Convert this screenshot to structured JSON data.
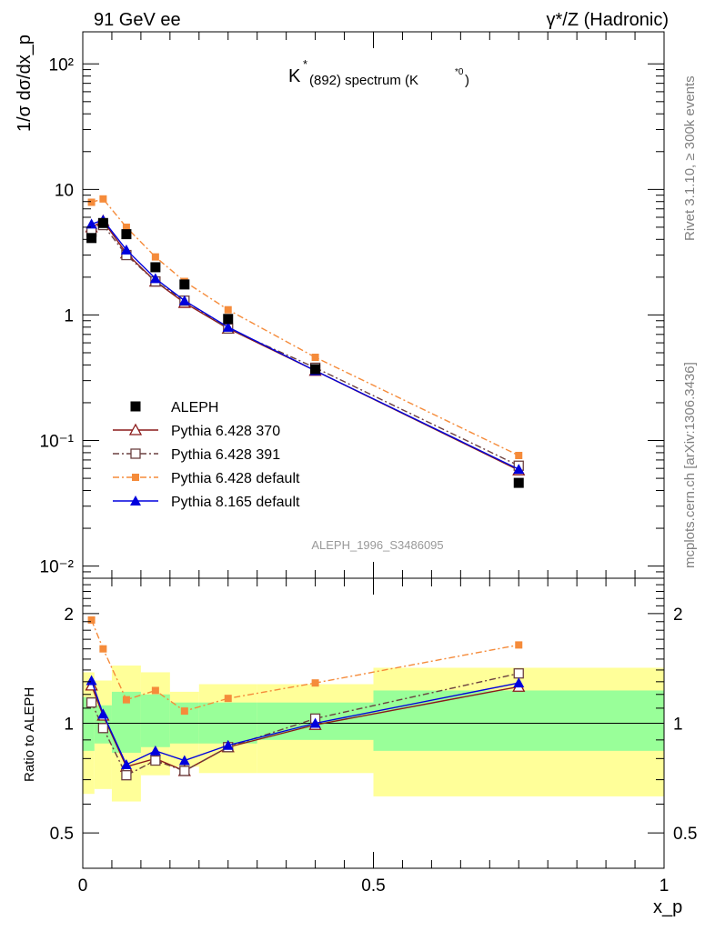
{
  "header": {
    "left": "91 GeV ee",
    "right": "γ*/Z (Hadronic)"
  },
  "side_labels": {
    "rivet": "Rivet 3.1.10, ≥ 300k events",
    "mcplots": "mcplots.cern.ch [arXiv:1306.3436]"
  },
  "analysis_label": "ALEPH_1996_S3486095",
  "title": {
    "main": "K",
    "sup": "*",
    "sub": "(892) spectrum (K",
    "sub_sup": "*0",
    "sub_close": ")"
  },
  "chart_data": [
    {
      "type": "scatter",
      "panel": "main",
      "yscale": "log",
      "ylabel": "1/σ dσ/dx_p",
      "xlim": [
        0,
        1
      ],
      "ylim": [
        0.008,
        180
      ],
      "y_tick_labels": [
        "10⁻²",
        "10⁻¹",
        "1",
        "10",
        "10²"
      ],
      "y_tick_values": [
        0.01,
        0.1,
        1,
        10,
        100
      ],
      "legend_position": "middle-left",
      "x": [
        0.015,
        0.035,
        0.075,
        0.125,
        0.175,
        0.25,
        0.4,
        0.75
      ],
      "series": [
        {
          "name": "ALEPH",
          "color": "#000000",
          "marker": "square-filled",
          "line": "none",
          "values": [
            4.1,
            5.4,
            4.4,
            2.4,
            1.75,
            0.93,
            0.37,
            0.046
          ]
        },
        {
          "name": "Pythia 6.428 370",
          "color": "#8b1a1a",
          "marker": "triangle-open",
          "line": "solid",
          "values": [
            5.0,
            5.6,
            3.1,
            1.85,
            1.25,
            0.78,
            0.36,
            0.058
          ]
        },
        {
          "name": "Pythia 6.428 391",
          "color": "#6b4040",
          "marker": "square-open",
          "line": "dashdot",
          "values": [
            4.6,
            5.2,
            3.0,
            1.85,
            1.3,
            0.78,
            0.38,
            0.063
          ]
        },
        {
          "name": "Pythia 6.428 default",
          "color": "#f58b3a",
          "marker": "square-small-filled",
          "line": "dashdot",
          "values": [
            7.9,
            8.4,
            5.0,
            2.9,
            1.85,
            1.1,
            0.46,
            0.076
          ]
        },
        {
          "name": "Pythia 8.165 default",
          "color": "#0000dd",
          "marker": "triangle-filled",
          "line": "solid",
          "values": [
            5.3,
            5.7,
            3.3,
            1.95,
            1.3,
            0.8,
            0.36,
            0.059
          ]
        }
      ]
    },
    {
      "type": "scatter",
      "panel": "ratio",
      "yscale": "log",
      "ylabel": "Ratio to ALEPH",
      "xlabel": "x_p",
      "xlim": [
        0,
        1
      ],
      "ylim": [
        0.4,
        2.5
      ],
      "x_tick_labels": [
        "0",
        "0.5",
        "1"
      ],
      "x_tick_values": [
        0,
        0.5,
        1
      ],
      "y_tick_labels": [
        "0.5",
        "1",
        "2"
      ],
      "y_tick_values": [
        0.5,
        1,
        2
      ],
      "reference_line": 1,
      "bands": {
        "bins": [
          [
            0,
            0.02
          ],
          [
            0.02,
            0.05
          ],
          [
            0.05,
            0.1
          ],
          [
            0.1,
            0.15
          ],
          [
            0.15,
            0.2
          ],
          [
            0.2,
            0.3
          ],
          [
            0.3,
            0.5
          ],
          [
            0.5,
            1.0
          ]
        ],
        "inner": {
          "name": "stat",
          "color": "#99ff99",
          "lo": [
            0.84,
            0.88,
            0.83,
            0.86,
            0.88,
            0.88,
            0.9,
            0.84
          ],
          "hi": [
            1.18,
            1.12,
            1.22,
            1.2,
            1.14,
            1.14,
            1.14,
            1.23
          ]
        },
        "outer": {
          "name": "total",
          "color": "#ffff99",
          "lo": [
            0.64,
            0.66,
            0.61,
            0.72,
            0.76,
            0.73,
            0.73,
            0.63
          ],
          "hi": [
            1.38,
            1.31,
            1.44,
            1.38,
            1.22,
            1.28,
            1.28,
            1.42
          ]
        }
      },
      "x": [
        0.015,
        0.035,
        0.075,
        0.125,
        0.175,
        0.25,
        0.4,
        0.75
      ],
      "series": [
        {
          "name": "Pythia 6.428 370",
          "color": "#8b1a1a",
          "marker": "triangle-open",
          "line": "solid",
          "values": [
            1.27,
            1.05,
            0.76,
            0.8,
            0.74,
            0.86,
            0.99,
            1.26
          ]
        },
        {
          "name": "Pythia 6.428 391",
          "color": "#6b4040",
          "marker": "square-open",
          "line": "dashdot",
          "values": [
            1.14,
            0.97,
            0.72,
            0.79,
            0.74,
            0.86,
            1.03,
            1.37
          ]
        },
        {
          "name": "Pythia 6.428 default",
          "color": "#f58b3a",
          "marker": "square-small-filled",
          "line": "dashdot",
          "values": [
            1.92,
            1.6,
            1.16,
            1.23,
            1.08,
            1.17,
            1.29,
            1.64
          ]
        },
        {
          "name": "Pythia 8.165 default",
          "color": "#0000dd",
          "marker": "triangle-filled",
          "line": "solid",
          "values": [
            1.31,
            1.06,
            0.77,
            0.84,
            0.79,
            0.87,
            1.0,
            1.29
          ]
        }
      ]
    }
  ]
}
